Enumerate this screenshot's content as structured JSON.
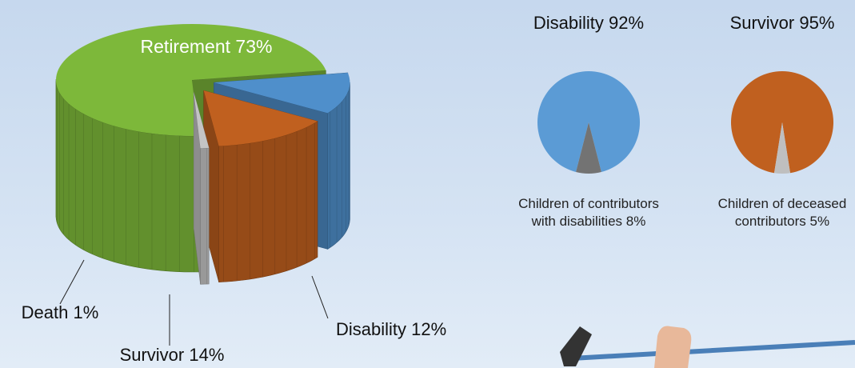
{
  "chart_data": [
    {
      "type": "pie",
      "three_d": true,
      "categories": [
        "Retirement",
        "Disability",
        "Survivor",
        "Death"
      ],
      "values": [
        73,
        12,
        14,
        1
      ],
      "value_labels": [
        "73%",
        "12%",
        "14%",
        "1%"
      ],
      "colors": [
        "#7db83a",
        "#4f8fcb",
        "#c0601f",
        "#c4c4c4"
      ]
    },
    {
      "type": "pie",
      "categories": [
        "Disability",
        "Children of contributors with disabilities"
      ],
      "values": [
        92,
        8
      ],
      "value_labels": [
        "92%",
        "8%"
      ],
      "colors": [
        "#5b9bd5",
        "#737373"
      ]
    },
    {
      "type": "pie",
      "categories": [
        "Survivor",
        "Children of deceased contributors"
      ],
      "values": [
        95,
        5
      ],
      "value_labels": [
        "95%",
        "5%"
      ],
      "colors": [
        "#c0601f",
        "#bfbfbf"
      ]
    }
  ]
}
